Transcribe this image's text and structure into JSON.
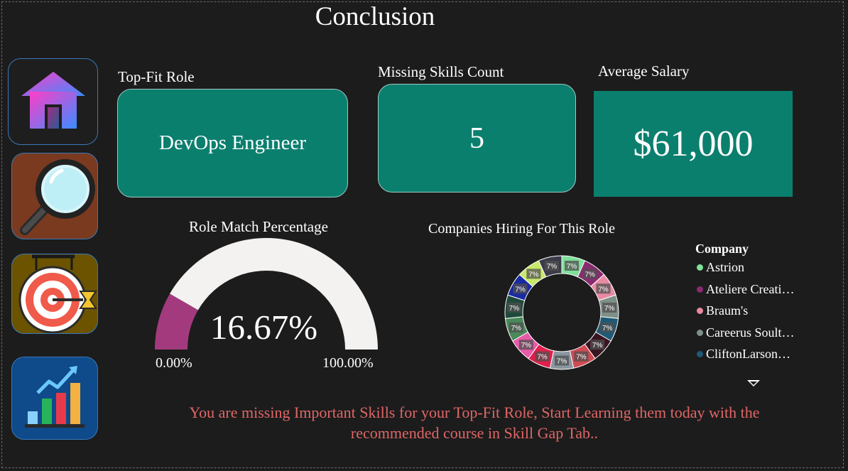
{
  "page": {
    "title": "Conclusion"
  },
  "nav": {
    "items": [
      {
        "name": "home",
        "icon": "house-icon",
        "bg": "#1e1e1e"
      },
      {
        "name": "search",
        "icon": "magnifying-glass-icon",
        "bg": "#7a3a1f"
      },
      {
        "name": "target",
        "icon": "target-icon",
        "bg": "#6b5300"
      },
      {
        "name": "chart",
        "icon": "bar-chart-icon",
        "bg": "#0f4a8a"
      }
    ]
  },
  "cards": {
    "top_fit_role": {
      "label": "Top-Fit Role",
      "value": "DevOps Engineer"
    },
    "missing_skills": {
      "label": "Missing Skills Count",
      "value": "5"
    },
    "average_salary": {
      "label": "Average Salary",
      "value": "$61,000"
    }
  },
  "gauge": {
    "title": "Role Match Percentage",
    "value_label": "16.67%",
    "value": 16.67,
    "min_label": "0.00%",
    "max_label": "100.00%",
    "fill_color": "#a33a7e",
    "track_color": "#f3f2f0"
  },
  "chart_data": {
    "type": "pie",
    "title": "Companies Hiring For This Role",
    "donut": true,
    "slice_label": "7%",
    "slices": [
      {
        "value": 7,
        "color": "#7fe09a"
      },
      {
        "value": 7,
        "color": "#8a2a70"
      },
      {
        "value": 7,
        "color": "#e88aa2"
      },
      {
        "value": 7,
        "color": "#7f9088"
      },
      {
        "value": 7,
        "color": "#1e5a76"
      },
      {
        "value": 7,
        "color": "#3a1420"
      },
      {
        "value": 7,
        "color": "#d04a52"
      },
      {
        "value": 7,
        "color": "#8a96a0"
      },
      {
        "value": 7,
        "color": "#e01f4a"
      },
      {
        "value": 7,
        "color": "#e85aa8"
      },
      {
        "value": 7,
        "color": "#4a8a5a"
      },
      {
        "value": 7,
        "color": "#1f4a3a"
      },
      {
        "value": 7,
        "color": "#1a2aa0"
      },
      {
        "value": 7,
        "color": "#c8e86a"
      },
      {
        "value": 7,
        "color": "#3a3a4a"
      }
    ],
    "legend": {
      "title": "Company",
      "placement": "right",
      "items": [
        {
          "label": "Astrion",
          "color": "#7fe09a"
        },
        {
          "label": "Ateliere Creati…",
          "color": "#8a2a70"
        },
        {
          "label": "Braum's",
          "color": "#e88aa2"
        },
        {
          "label": "Careerus Soult…",
          "color": "#7f9088"
        },
        {
          "label": "CliftonLarson…",
          "color": "#1e5a76"
        }
      ]
    }
  },
  "message": {
    "line1": "You are missing Important Skills for your Top-Fit Role, Start Learning them today with the",
    "line2": "recommended course in Skill Gap Tab.."
  }
}
